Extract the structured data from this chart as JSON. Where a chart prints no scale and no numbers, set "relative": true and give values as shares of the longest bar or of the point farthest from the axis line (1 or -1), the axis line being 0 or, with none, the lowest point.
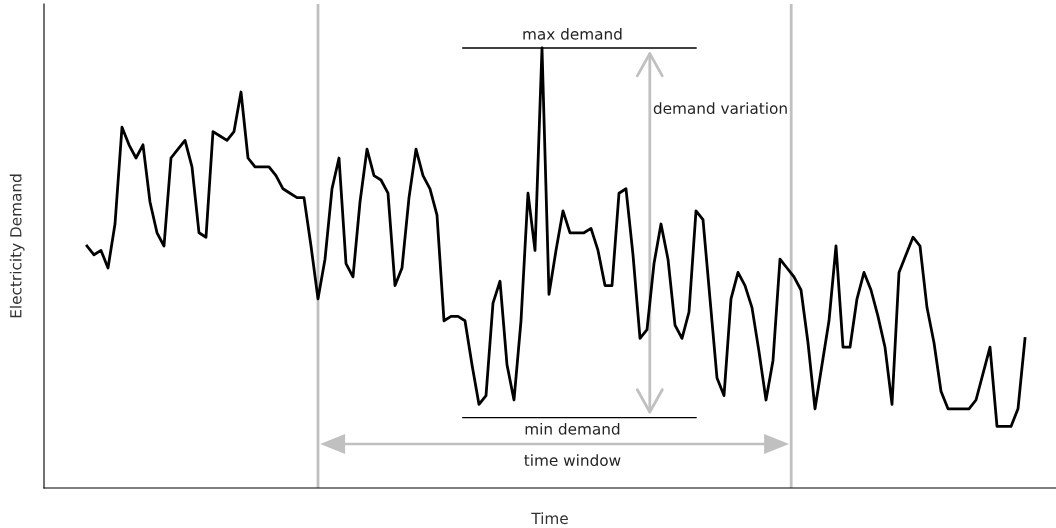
{
  "chart_data": {
    "type": "line",
    "relative": true,
    "xlabel": "Time",
    "ylabel": "Electricity Demand",
    "categories": [
      null,
      null,
      null,
      null,
      null,
      null,
      null,
      null,
      null,
      null,
      null,
      null,
      null,
      null,
      null,
      null,
      null,
      null,
      null,
      null,
      null,
      null,
      null,
      null,
      null,
      null,
      null,
      null,
      null,
      null,
      null,
      null,
      null,
      null,
      null,
      null,
      null,
      null,
      null,
      null,
      null,
      null,
      null,
      null,
      null,
      null,
      null,
      null,
      null,
      null,
      null,
      null,
      null,
      null,
      null,
      null,
      null,
      null,
      null,
      null,
      null,
      null,
      null,
      null,
      null,
      null,
      null,
      null,
      null,
      null,
      null,
      null,
      null,
      null,
      null,
      null,
      null,
      null,
      null,
      null,
      null,
      null,
      null,
      null,
      null,
      null,
      null,
      null,
      null,
      null,
      null,
      null,
      null,
      null,
      null,
      null,
      null,
      null,
      null,
      null,
      null,
      null,
      null,
      null,
      null,
      null,
      null,
      null,
      null,
      null,
      null,
      null,
      null,
      null,
      null,
      null,
      null,
      null,
      null,
      null,
      null,
      null,
      null,
      null,
      null,
      null,
      null,
      null,
      null,
      null,
      null,
      null,
      null,
      null,
      null
    ],
    "series": [
      {
        "color": "#000000",
        "values": [
          0.55,
          0.53,
          0.54,
          0.5,
          0.6,
          0.82,
          0.78,
          0.75,
          0.78,
          0.65,
          0.58,
          0.55,
          0.75,
          0.77,
          0.79,
          0.73,
          0.58,
          0.57,
          0.81,
          0.8,
          0.79,
          0.81,
          0.9,
          0.75,
          0.73,
          0.73,
          0.73,
          0.71,
          0.68,
          0.67,
          0.66,
          0.66,
          0.55,
          0.43,
          0.52,
          0.68,
          0.75,
          0.51,
          0.48,
          0.65,
          0.77,
          0.71,
          0.7,
          0.67,
          0.46,
          0.5,
          0.66,
          0.77,
          0.71,
          0.68,
          0.62,
          0.38,
          0.39,
          0.39,
          0.38,
          0.28,
          0.19,
          0.21,
          0.42,
          0.47,
          0.28,
          0.2,
          0.38,
          0.67,
          0.54,
          1.0,
          0.44,
          0.54,
          0.63,
          0.58,
          0.58,
          0.58,
          0.59,
          0.54,
          0.46,
          0.46,
          0.67,
          0.68,
          0.53,
          0.34,
          0.36,
          0.51,
          0.6,
          0.52,
          0.37,
          0.34,
          0.4,
          0.63,
          0.61,
          0.43,
          0.25,
          0.21,
          0.43,
          0.49,
          0.46,
          0.41,
          0.31,
          0.2,
          0.29,
          0.52,
          0.5,
          0.48,
          0.45,
          0.33,
          0.18,
          0.28,
          0.38,
          0.55,
          0.32,
          0.32,
          0.43,
          0.49,
          0.45,
          0.39,
          0.32,
          0.19,
          0.49,
          0.53,
          0.57,
          0.55,
          0.41,
          0.33,
          0.22,
          0.18,
          0.18,
          0.18,
          0.18,
          0.2,
          0.26,
          0.32,
          0.14,
          0.14,
          0.14,
          0.18,
          0.34
        ]
      }
    ],
    "ref_lines": [
      {
        "axis": "y",
        "value": 1.0,
        "label": "max demand",
        "color": "#000000"
      },
      {
        "axis": "y",
        "value": 0.16,
        "label": "min demand",
        "color": "#000000"
      }
    ],
    "annotations": [
      "demand variation",
      "time window"
    ],
    "grid": false
  }
}
